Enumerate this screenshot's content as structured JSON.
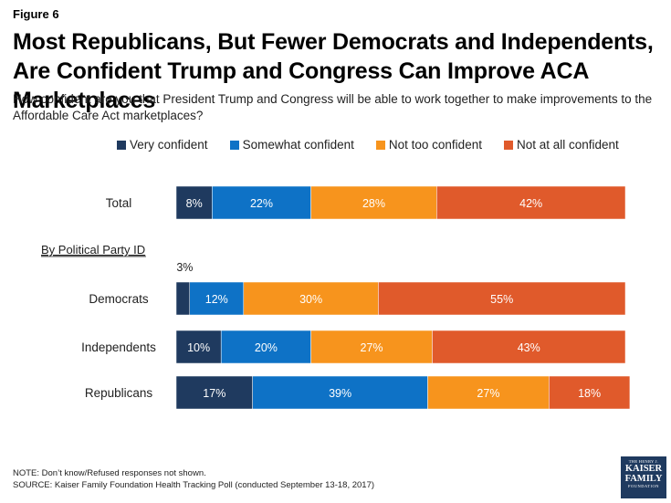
{
  "figure_label": "Figure 6",
  "title": "Most Republicans, But Fewer Democrats and Independents, Are Confident Trump and Congress Can Improve ACA Marketplaces",
  "question": "How confident are you that President Trump and Congress will be able to work together to make improvements to the Affordable Care Act marketplaces?",
  "note": "NOTE: Don’t know/Refused responses not shown.",
  "source": "SOURCE: Kaiser Family Foundation Health Tracking Poll (conducted September 13-18, 2017)",
  "logo": {
    "line1": "THE HENRY J.",
    "line2a": "KAISER",
    "line2b": "FAMILY",
    "line3": "FOUNDATION"
  },
  "group_heading": "By Political Party ID",
  "chart_data": {
    "type": "bar",
    "orientation": "horizontal",
    "stacked": true,
    "unit": "%",
    "categories": [
      "Total",
      "Democrats",
      "Independents",
      "Republicans"
    ],
    "series": [
      {
        "name": "Very confident",
        "color": "#1f3a5f",
        "values": [
          8,
          3,
          10,
          17
        ]
      },
      {
        "name": "Somewhat confident",
        "color": "#0e72c6",
        "values": [
          22,
          12,
          20,
          39
        ]
      },
      {
        "name": "Not too confident",
        "color": "#f7941d",
        "values": [
          28,
          30,
          27,
          27
        ]
      },
      {
        "name": "Not at all confident",
        "color": "#e05a2b",
        "values": [
          42,
          55,
          43,
          18
        ]
      }
    ],
    "outside_labels": [
      {
        "category": "Democrats",
        "series": "Very confident",
        "text": "3%"
      }
    ],
    "legend_position": "top",
    "grid": false
  }
}
